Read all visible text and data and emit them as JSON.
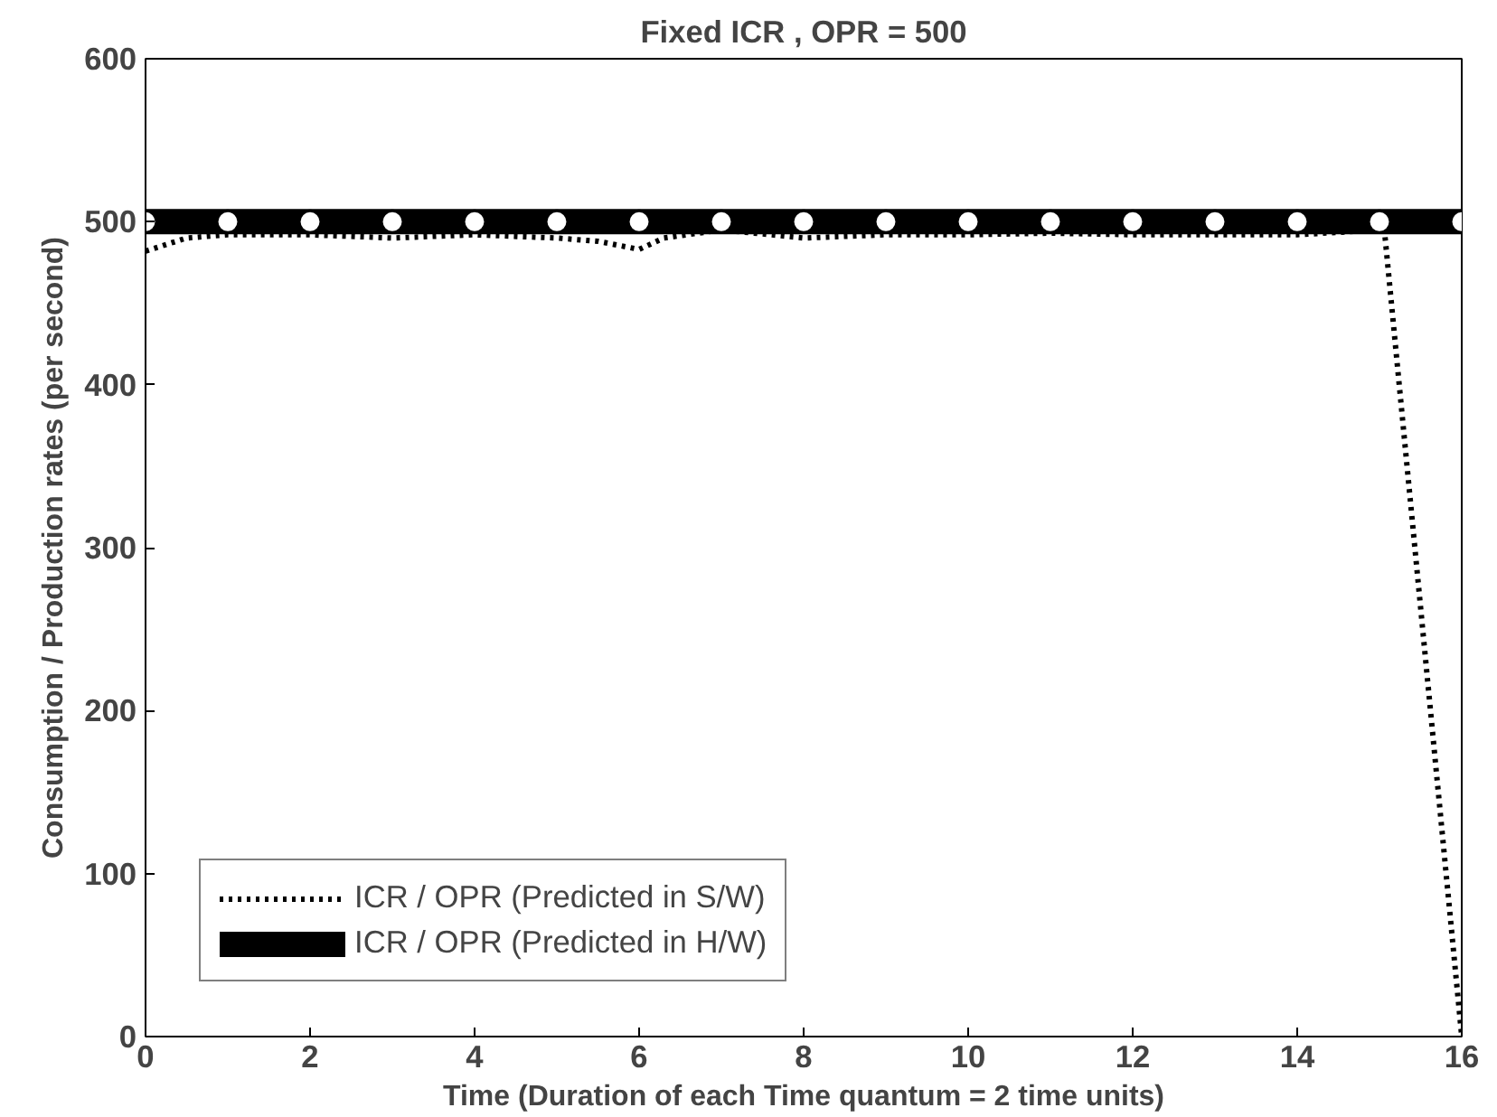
{
  "chart_data": {
    "type": "line",
    "title": "Fixed ICR , OPR = 500",
    "xlabel": "Time (Duration of each Time quantum = 2 time units)",
    "ylabel": "Consumption / Production rates (per second)",
    "xlim": [
      0,
      16
    ],
    "ylim": [
      0,
      600
    ],
    "xticks": [
      0,
      2,
      4,
      6,
      8,
      10,
      12,
      14,
      16
    ],
    "yticks": [
      0,
      100,
      200,
      300,
      400,
      500,
      600
    ],
    "grid": false,
    "legend": "bottom left",
    "series": [
      {
        "name": "ICR / OPR (Predicted in S/W)",
        "color": "#000000",
        "line_style": "dotted",
        "marker": "none",
        "x": [
          0,
          0.5,
          1,
          2,
          3,
          4,
          5,
          5.5,
          6,
          6.3,
          7,
          8,
          9,
          10,
          11,
          12,
          13,
          14,
          15,
          15.05,
          16
        ],
        "values": [
          482,
          490,
          492,
          492,
          490,
          492,
          490,
          488,
          483,
          490,
          495,
          490,
          492,
          492,
          493,
          492,
          492,
          492,
          495,
          500,
          0
        ]
      },
      {
        "name": "ICR / OPR (Predicted in H/W)",
        "color": "#000000",
        "line_style": "solid",
        "marker": "circle",
        "x": [
          0,
          1,
          2,
          3,
          4,
          5,
          6,
          7,
          8,
          9,
          10,
          11,
          12,
          13,
          14,
          15,
          16
        ],
        "values": [
          500,
          500,
          500,
          500,
          500,
          500,
          500,
          500,
          500,
          500,
          500,
          500,
          500,
          500,
          500,
          500,
          500
        ]
      }
    ]
  }
}
